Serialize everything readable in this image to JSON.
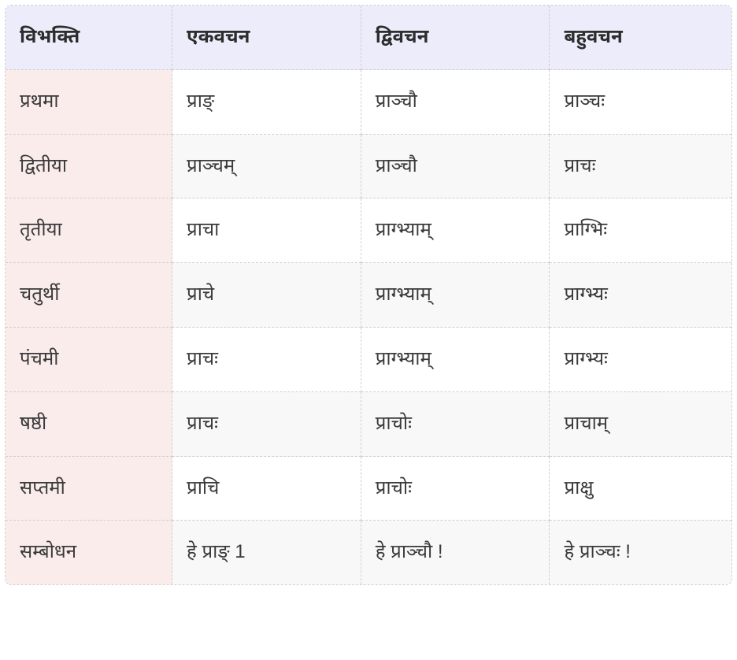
{
  "table": {
    "type": "table",
    "header_bg": "#ececfb",
    "first_col_bg": "#fbecec",
    "row_even_bg": "#f8f8f8",
    "row_odd_bg": "#ffffff",
    "border_color": "#cfcfcf",
    "border_style": "dashed",
    "corner_radius": 8,
    "font_size": 24,
    "header_font_weight": 700,
    "text_color": "#3a3a3a",
    "columns": [
      "विभक्ति",
      "एकवचन",
      "द्विवचन",
      "बहुवचन"
    ],
    "rows": [
      [
        "प्रथमा",
        "प्राङ्",
        "प्राञ्चौ",
        "प्राञ्चः"
      ],
      [
        "द्वितीया",
        "प्राञ्चम्",
        "प्राञ्चौ",
        "प्राचः"
      ],
      [
        "तृतीया",
        "प्राचा",
        "प्राग्भ्याम्",
        "प्राग्भिः"
      ],
      [
        "चतुर्थी",
        "प्राचे",
        "प्राग्भ्याम्",
        "प्राग्भ्यः"
      ],
      [
        "पंचमी",
        "प्राचः",
        "प्राग्भ्याम्",
        "प्राग्भ्यः"
      ],
      [
        "षष्ठी",
        "प्राचः",
        "प्राचोः",
        "प्राचाम्"
      ],
      [
        "सप्तमी",
        "प्राचि",
        "प्राचोः",
        "प्राक्षु"
      ],
      [
        "सम्बोधन",
        "हे प्राङ् 1",
        "हे प्राञ्चौ !",
        "हे प्राञ्चः !"
      ]
    ]
  }
}
